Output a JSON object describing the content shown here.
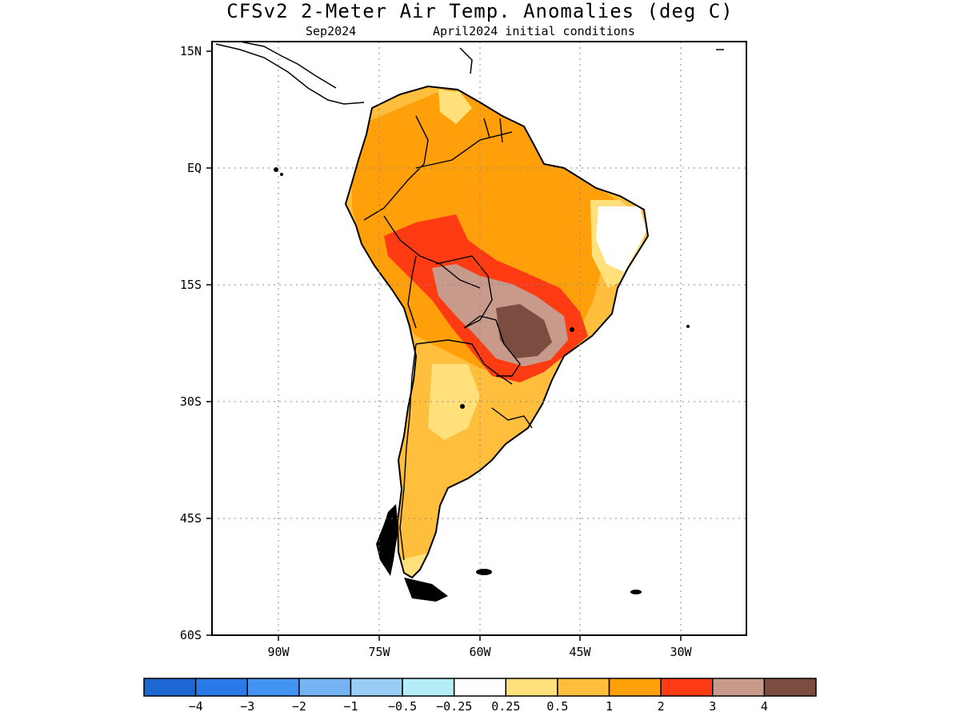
{
  "title": "CFSv2 2-Meter Air Temp. Anomalies (deg C)",
  "subtitle_left": "Sep2024",
  "subtitle_right": "April2024 initial conditions",
  "lat_ticks": [
    "15N",
    "EQ",
    "15S",
    "30S",
    "45S",
    "60S"
  ],
  "lon_ticks": [
    "90W",
    "75W",
    "60W",
    "45W",
    "30W"
  ],
  "colorbar": {
    "colors": [
      "#1d67d3",
      "#2a79e8",
      "#4394f0",
      "#76b3f5",
      "#97cdf7",
      "#b4edf6",
      "#ffffff",
      "#ffe07a",
      "#ffbe3c",
      "#ff9f0a",
      "#ff3b14",
      "#c79a8c",
      "#7a4d40"
    ],
    "labels": [
      "-4",
      "-3",
      "-2",
      "-1",
      "-0.5",
      "-0.25",
      "0.25",
      "0.5",
      "1",
      "2",
      "3",
      "4"
    ]
  }
}
